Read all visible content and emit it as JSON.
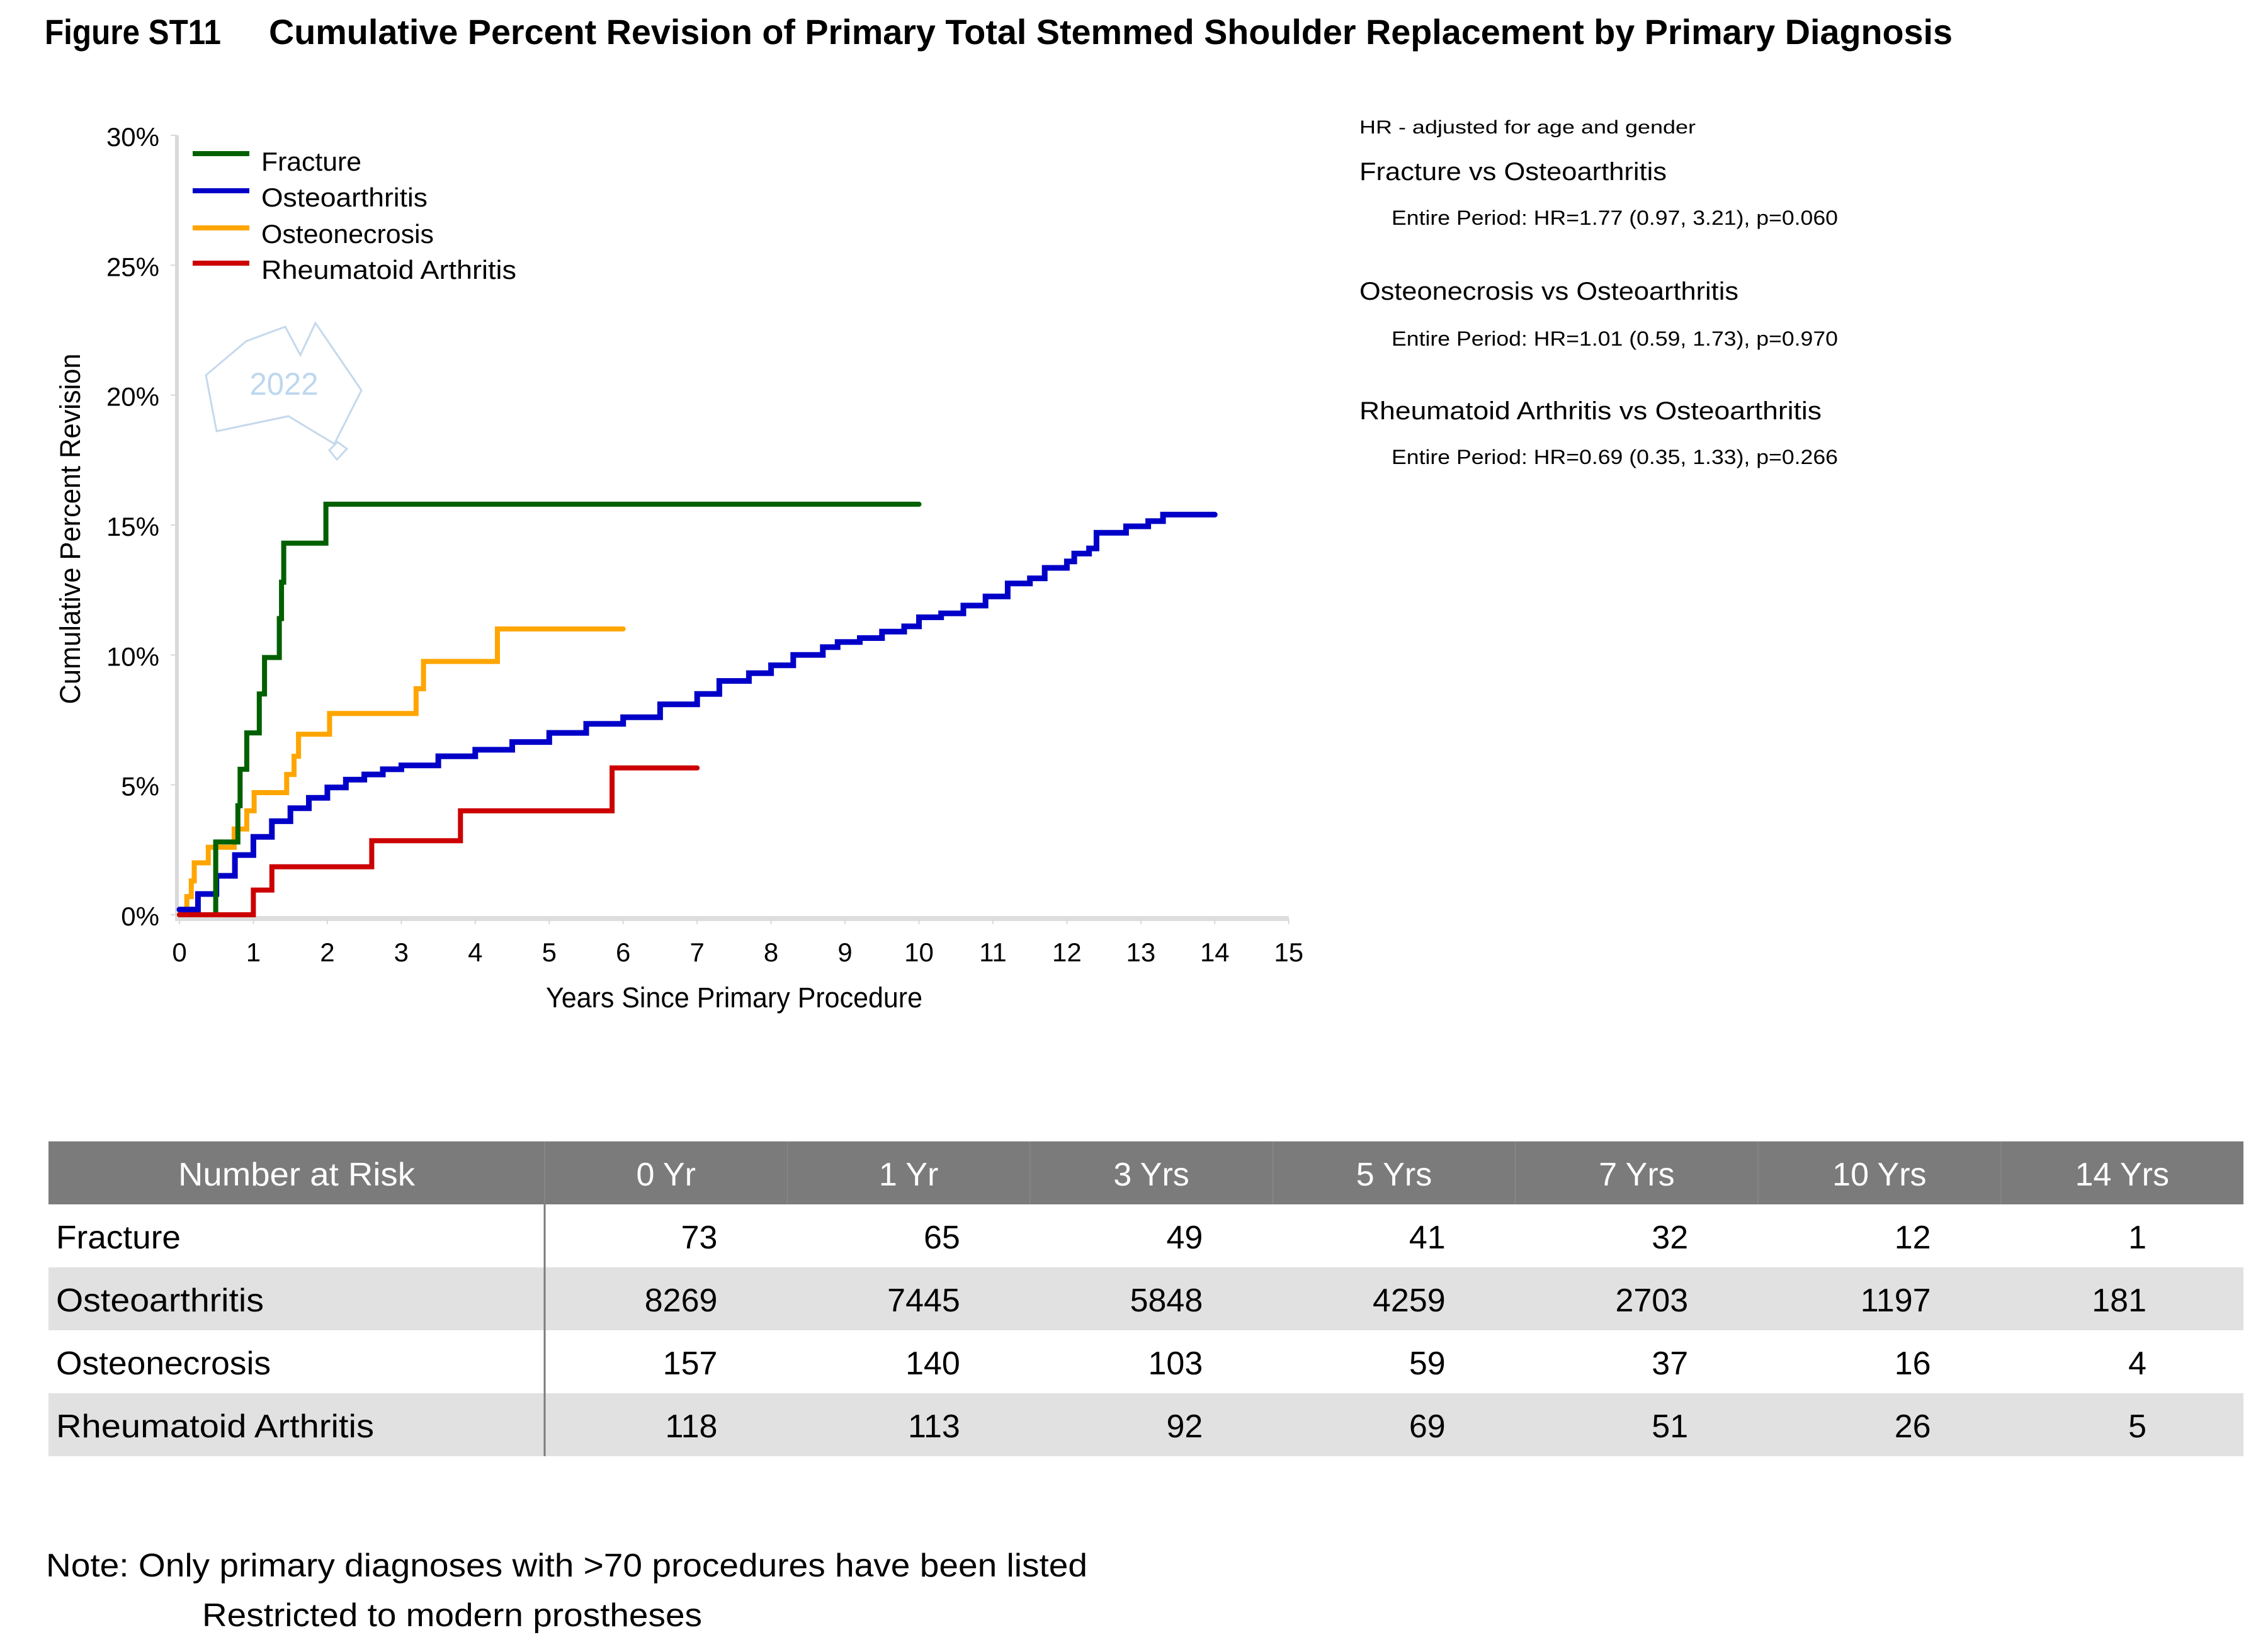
{
  "chart_data": {
    "type": "line",
    "subtype": "step",
    "figure_label": "Figure ST11",
    "title": "Cumulative Percent Revision of Primary Total Stemmed Shoulder Replacement by Primary Diagnosis",
    "xlabel": "Years Since Primary Procedure",
    "ylabel": "Cumulative Percent Revision",
    "xlim": [
      0,
      15
    ],
    "ylim": [
      0,
      30
    ],
    "grid": false,
    "legend_position": "top-left",
    "x_ticks": [
      {
        "value": 0,
        "label": "0"
      },
      {
        "value": 1,
        "label": "1"
      },
      {
        "value": 2,
        "label": "2"
      },
      {
        "value": 3,
        "label": "3"
      },
      {
        "value": 4,
        "label": "4"
      },
      {
        "value": 5,
        "label": "5"
      },
      {
        "value": 6,
        "label": "6"
      },
      {
        "value": 7,
        "label": "7"
      },
      {
        "value": 8,
        "label": "8"
      },
      {
        "value": 9,
        "label": "9"
      },
      {
        "value": 10,
        "label": "10"
      },
      {
        "value": 11,
        "label": "11"
      },
      {
        "value": 12,
        "label": "12"
      },
      {
        "value": 13,
        "label": "13"
      },
      {
        "value": 14,
        "label": "14"
      },
      {
        "value": 15,
        "label": "15"
      }
    ],
    "y_ticks": [
      {
        "value": 0,
        "label": "0%"
      },
      {
        "value": 5,
        "label": "5%"
      },
      {
        "value": 10,
        "label": "10%"
      },
      {
        "value": 15,
        "label": "15%"
      },
      {
        "value": 20,
        "label": "20%"
      },
      {
        "value": 25,
        "label": "25%"
      },
      {
        "value": 30,
        "label": "30%"
      }
    ],
    "series": [
      {
        "name": "Fracture",
        "color": "#006000",
        "end": 10.0,
        "points": [
          [
            0,
            0
          ],
          [
            0.49,
            2.8
          ],
          [
            0.79,
            4.2
          ],
          [
            0.82,
            5.6
          ],
          [
            0.91,
            7.0
          ],
          [
            1.08,
            8.5
          ],
          [
            1.15,
            9.9
          ],
          [
            1.35,
            11.4
          ],
          [
            1.38,
            12.8
          ],
          [
            1.41,
            14.3
          ],
          [
            1.98,
            15.8
          ]
        ]
      },
      {
        "name": "Osteoarthritis",
        "color": "#0000C8",
        "end": 14.0,
        "points": [
          [
            0,
            0.2
          ],
          [
            0.25,
            0.8
          ],
          [
            0.5,
            1.5
          ],
          [
            0.75,
            2.3
          ],
          [
            1.0,
            3.0
          ],
          [
            1.25,
            3.6
          ],
          [
            1.5,
            4.1
          ],
          [
            1.75,
            4.5
          ],
          [
            2.0,
            4.9
          ],
          [
            2.25,
            5.2
          ],
          [
            2.5,
            5.4
          ],
          [
            2.75,
            5.6
          ],
          [
            3.0,
            5.75
          ],
          [
            3.5,
            6.1
          ],
          [
            4.0,
            6.35
          ],
          [
            4.5,
            6.65
          ],
          [
            5.0,
            7.0
          ],
          [
            5.5,
            7.35
          ],
          [
            6.0,
            7.6
          ],
          [
            6.5,
            8.1
          ],
          [
            7.0,
            8.5
          ],
          [
            7.3,
            9.0
          ],
          [
            7.7,
            9.3
          ],
          [
            8.0,
            9.6
          ],
          [
            8.3,
            10.0
          ],
          [
            8.7,
            10.3
          ],
          [
            8.9,
            10.5
          ],
          [
            9.2,
            10.65
          ],
          [
            9.5,
            10.9
          ],
          [
            9.8,
            11.1
          ],
          [
            10.0,
            11.45
          ],
          [
            10.3,
            11.6
          ],
          [
            10.6,
            11.9
          ],
          [
            10.9,
            12.25
          ],
          [
            11.2,
            12.75
          ],
          [
            11.5,
            12.95
          ],
          [
            11.7,
            13.35
          ],
          [
            12.0,
            13.6
          ],
          [
            12.1,
            13.9
          ],
          [
            12.3,
            14.1
          ],
          [
            12.4,
            14.7
          ],
          [
            12.8,
            14.95
          ],
          [
            13.1,
            15.15
          ],
          [
            13.3,
            15.4
          ]
        ]
      },
      {
        "name": "Osteonecrosis",
        "color": "#FFA500",
        "end": 6.0,
        "points": [
          [
            0,
            0
          ],
          [
            0.1,
            0.7
          ],
          [
            0.16,
            1.3
          ],
          [
            0.2,
            2.0
          ],
          [
            0.39,
            2.6
          ],
          [
            0.74,
            3.3
          ],
          [
            0.91,
            4.0
          ],
          [
            1.01,
            4.7
          ],
          [
            1.45,
            5.4
          ],
          [
            1.55,
            6.1
          ],
          [
            1.61,
            6.95
          ],
          [
            2.03,
            7.75
          ],
          [
            3.2,
            8.7
          ],
          [
            3.3,
            9.75
          ],
          [
            4.3,
            11.0
          ]
        ]
      },
      {
        "name": "Rheumatoid Arthritis",
        "color": "#CC0000",
        "end": 7.0,
        "points": [
          [
            0,
            0
          ],
          [
            1.0,
            0.95
          ],
          [
            1.25,
            1.85
          ],
          [
            2.6,
            2.85
          ],
          [
            3.8,
            4.0
          ],
          [
            5.85,
            5.65
          ]
        ]
      }
    ]
  },
  "watermark": {
    "text": "2022",
    "color": "#BDD7EE"
  },
  "hazard_ratios": {
    "note": "HR - adjusted for age and gender",
    "comparisons": [
      {
        "title": "Fracture vs Osteoarthritis",
        "result": "Entire Period: HR=1.77 (0.97, 3.21), p=0.060"
      },
      {
        "title": "Osteonecrosis vs Osteoarthritis",
        "result": "Entire Period: HR=1.01 (0.59, 1.73), p=0.970"
      },
      {
        "title": "Rheumatoid Arthritis vs Osteoarthritis",
        "result": "Entire Period: HR=0.69 (0.35, 1.33), p=0.266"
      }
    ]
  },
  "risk_table": {
    "header": "Number at Risk",
    "header_color": "#7B7B7B",
    "stripe_color": "#E1E1E1",
    "columns": [
      "0 Yr",
      "1 Yr",
      "3 Yrs",
      "5 Yrs",
      "7 Yrs",
      "10 Yrs",
      "14 Yrs"
    ],
    "rows": [
      {
        "label": "Fracture",
        "values": [
          "73",
          "65",
          "49",
          "41",
          "32",
          "12",
          "1"
        ]
      },
      {
        "label": "Osteoarthritis",
        "values": [
          "8269",
          "7445",
          "5848",
          "4259",
          "2703",
          "1197",
          "181"
        ]
      },
      {
        "label": "Osteonecrosis",
        "values": [
          "157",
          "140",
          "103",
          "59",
          "37",
          "16",
          "4"
        ]
      },
      {
        "label": "Rheumatoid Arthritis",
        "values": [
          "118",
          "113",
          "92",
          "69",
          "51",
          "26",
          "5"
        ]
      }
    ]
  },
  "notes": [
    "Note: Only primary diagnoses with >70 procedures have been listed",
    "Restricted to modern prostheses"
  ]
}
